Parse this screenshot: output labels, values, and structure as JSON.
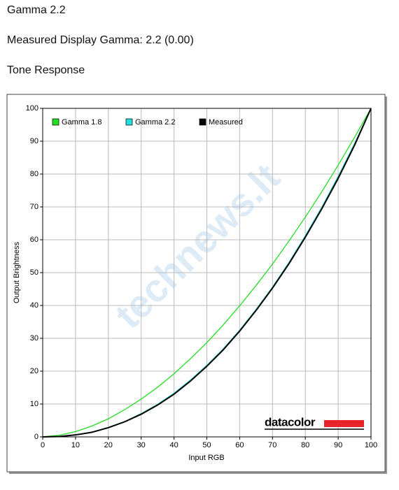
{
  "header": {
    "title": "Gamma 2.2",
    "measured": "Measured Display Gamma: 2.2 (0.00)",
    "section": "Tone Response"
  },
  "chart_data": {
    "type": "line",
    "x_label": "Input RGB",
    "y_label": "Output Brightness",
    "x": [
      0,
      5,
      10,
      15,
      20,
      25,
      30,
      35,
      40,
      45,
      50,
      55,
      60,
      65,
      70,
      75,
      80,
      85,
      90,
      95,
      100
    ],
    "series": [
      {
        "name": "Gamma 1.8",
        "color": "#22dd22",
        "values": [
          0,
          0.5,
          1.6,
          3.3,
          5.5,
          8.3,
          11.5,
          15.1,
          19.2,
          23.8,
          28.7,
          34.1,
          39.9,
          46.1,
          52.6,
          59.6,
          66.9,
          74.6,
          82.7,
          91.2,
          100
        ]
      },
      {
        "name": "Gamma 2.2",
        "color": "#22dddd",
        "values": [
          0,
          0.1,
          0.6,
          1.5,
          2.9,
          4.7,
          7.1,
          9.9,
          13.3,
          17.3,
          21.8,
          26.8,
          32.5,
          38.8,
          45.6,
          53.1,
          61.2,
          69.9,
          79.3,
          89.3,
          100
        ]
      },
      {
        "name": "Measured",
        "color": "#000000",
        "values": [
          0,
          0.1,
          0.6,
          1.4,
          2.8,
          4.6,
          6.9,
          9.7,
          13.0,
          17.0,
          21.5,
          26.5,
          32.2,
          38.5,
          45.3,
          52.7,
          60.8,
          69.4,
          78.7,
          88.8,
          100
        ]
      }
    ],
    "xlim": [
      0,
      100
    ],
    "ylim": [
      0,
      100
    ],
    "xticks": [
      0,
      10,
      20,
      30,
      40,
      50,
      60,
      70,
      80,
      90,
      100
    ],
    "yticks": [
      0,
      10,
      20,
      30,
      40,
      50,
      60,
      70,
      80,
      90,
      100
    ],
    "grid": true,
    "legend": "top-left",
    "logo": "datacolor",
    "watermark": "technews.lt"
  }
}
